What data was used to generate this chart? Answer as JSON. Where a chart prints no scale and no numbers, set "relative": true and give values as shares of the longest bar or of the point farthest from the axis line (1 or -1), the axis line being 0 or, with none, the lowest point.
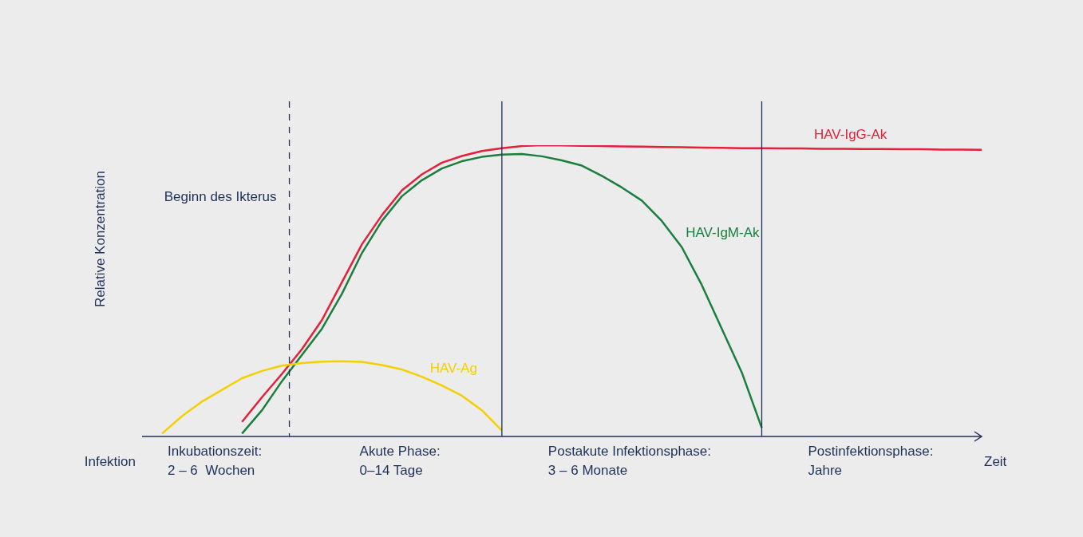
{
  "chart_data": {
    "type": "line",
    "relative": true,
    "xlabel": "Zeit",
    "ylabel": "Relative Konzentration",
    "categories": [
      null,
      null,
      null,
      null,
      null,
      null,
      null,
      null,
      null,
      null,
      null,
      null,
      null,
      null,
      null,
      null,
      null,
      null,
      null,
      null,
      null,
      null,
      null,
      null,
      null,
      null,
      null,
      null,
      null,
      null,
      null,
      null,
      null,
      null,
      null,
      null,
      null,
      null,
      null,
      null,
      null,
      null,
      null
    ],
    "series": [
      {
        "name": "HAV-Ag",
        "color": "#f5d000",
        "values": [
          null,
          0.01,
          0.07,
          0.12,
          0.16,
          0.2,
          0.225,
          0.243,
          0.252,
          0.257,
          0.258,
          0.256,
          0.245,
          0.23,
          0.205,
          0.175,
          0.14,
          0.09,
          0.02,
          null,
          null,
          null,
          null,
          null,
          null,
          null,
          null,
          null,
          null,
          null,
          null,
          null,
          null,
          null,
          null,
          null,
          null,
          null,
          null,
          null,
          null,
          null,
          null
        ]
      },
      {
        "name": "HAV-IgG-Ak",
        "color": "#e4203a",
        "values": [
          null,
          null,
          null,
          null,
          null,
          0.05,
          0.135,
          0.215,
          0.3,
          0.4,
          0.53,
          0.66,
          0.76,
          0.845,
          0.9,
          0.94,
          0.963,
          0.98,
          0.99,
          0.997,
          1,
          0.999,
          0.998,
          0.997,
          0.996,
          0.995,
          0.994,
          0.993,
          0.992,
          0.991,
          0.99,
          0.99,
          0.989,
          0.989,
          0.988,
          0.988,
          0.987,
          0.987,
          0.986,
          0.986,
          0.985,
          0.985,
          0.984
        ]
      },
      {
        "name": "HAV-IgM-Ak",
        "color": "#1a7f3c",
        "values": [
          null,
          null,
          null,
          null,
          null,
          0.01,
          0.09,
          0.19,
          0.28,
          0.37,
          0.49,
          0.63,
          0.74,
          0.825,
          0.88,
          0.92,
          0.945,
          0.96,
          0.968,
          0.97,
          0.962,
          0.948,
          0.93,
          0.895,
          0.855,
          0.81,
          0.74,
          0.65,
          0.52,
          0.37,
          0.22,
          0.03,
          null,
          null,
          null,
          null,
          null,
          null,
          null,
          null,
          null,
          null,
          null
        ]
      }
    ],
    "ref_lines": [
      {
        "axis": "x",
        "label": "Beginn des Ikterus",
        "line_style": "dashed",
        "color": "#1e2f5a"
      },
      {
        "axis": "x",
        "color": "#1e2f5a"
      },
      {
        "axis": "x",
        "color": "#1e2f5a"
      }
    ],
    "annotations": [
      "Infektion",
      "Inkubationszeit:\n2 – 6  Wochen",
      "Akute Phase:\n0–14 Tage",
      "Postakute Infektionsphase:\n3 – 6 Monate",
      "Postinfektionsphase:\nJahre"
    ]
  }
}
